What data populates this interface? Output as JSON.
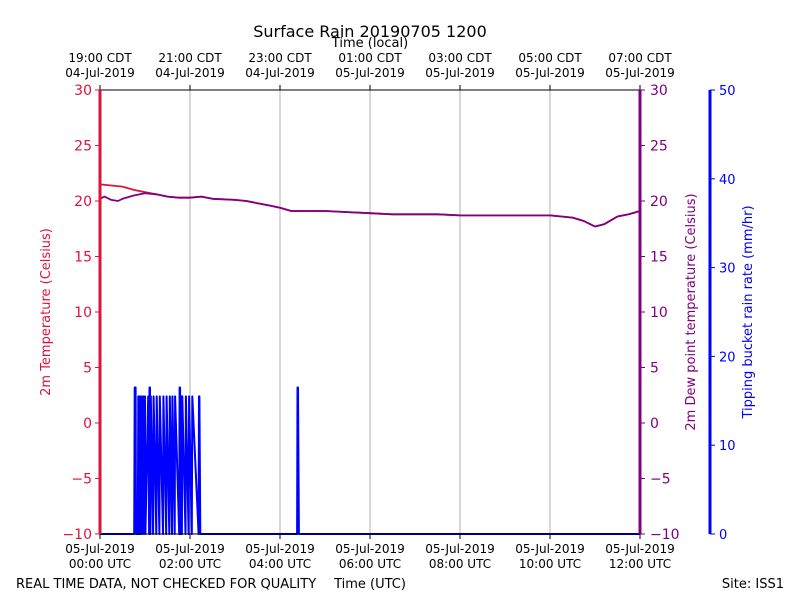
{
  "chart_data": {
    "type": "line",
    "title": "Surface Rain 20190705 1200",
    "top_axis_label": "Time (local)",
    "xlabel": "Time (UTC)",
    "footer_left": "REAL TIME DATA, NOT CHECKED FOR QUALITY",
    "footer_right": "Site: ISS1",
    "x_range_hours_utc": [
      0,
      12
    ],
    "bottom_ticks": [
      {
        "hour": 0,
        "line1": "05-Jul-2019",
        "line2": "00:00 UTC"
      },
      {
        "hour": 2,
        "line1": "05-Jul-2019",
        "line2": "02:00 UTC"
      },
      {
        "hour": 4,
        "line1": "05-Jul-2019",
        "line2": "04:00 UTC"
      },
      {
        "hour": 6,
        "line1": "05-Jul-2019",
        "line2": "06:00 UTC"
      },
      {
        "hour": 8,
        "line1": "05-Jul-2019",
        "line2": "08:00 UTC"
      },
      {
        "hour": 10,
        "line1": "05-Jul-2019",
        "line2": "10:00 UTC"
      },
      {
        "hour": 12,
        "line1": "05-Jul-2019",
        "line2": "12:00 UTC"
      }
    ],
    "top_ticks": [
      {
        "hour": 0,
        "line1": "19:00 CDT",
        "line2": "04-Jul-2019"
      },
      {
        "hour": 2,
        "line1": "21:00 CDT",
        "line2": "04-Jul-2019"
      },
      {
        "hour": 4,
        "line1": "23:00 CDT",
        "line2": "04-Jul-2019"
      },
      {
        "hour": 6,
        "line1": "01:00 CDT",
        "line2": "05-Jul-2019"
      },
      {
        "hour": 8,
        "line1": "03:00 CDT",
        "line2": "05-Jul-2019"
      },
      {
        "hour": 10,
        "line1": "05:00 CDT",
        "line2": "05-Jul-2019"
      },
      {
        "hour": 12,
        "line1": "07:00 CDT",
        "line2": "05-Jul-2019"
      }
    ],
    "grid": true,
    "y_left": {
      "label": "2m Temperature (Celsius)",
      "range": [
        -10,
        30
      ],
      "ticks": [
        -10,
        -5,
        0,
        5,
        10,
        15,
        20,
        25,
        30
      ],
      "color": "#dc143c"
    },
    "y_right_1": {
      "label": "2m Dew point temperature (Celsius)",
      "range": [
        -10,
        30
      ],
      "ticks": [
        -10,
        -5,
        0,
        5,
        10,
        15,
        20,
        25,
        30
      ],
      "color": "#800080"
    },
    "y_right_2": {
      "label": "Tipping bucket rain rate (mm/hr)",
      "range": [
        0,
        50
      ],
      "ticks": [
        0,
        10,
        20,
        30,
        40,
        50
      ],
      "color": "#0000ff"
    },
    "series": [
      {
        "axis": "left",
        "color": "#dc143c",
        "x": [
          0,
          0.25,
          0.5,
          0.75,
          1.0,
          1.25,
          1.5,
          1.75,
          2.0,
          2.25,
          2.5,
          3.0,
          3.25,
          3.5,
          3.75,
          4.0,
          4.25,
          4.5,
          5.0,
          5.5,
          6.0,
          6.5,
          7.0,
          7.5,
          8.0,
          8.5,
          9.0,
          9.5,
          10.0,
          10.5,
          10.75,
          10.9,
          11.0,
          11.2,
          11.5,
          11.75,
          12.0
        ],
        "y": [
          21.5,
          21.4,
          21.3,
          21.0,
          20.8,
          20.6,
          20.4,
          20.3,
          20.3,
          20.4,
          20.2,
          20.1,
          20.0,
          19.8,
          19.6,
          19.4,
          19.1,
          19.1,
          19.1,
          19.0,
          18.9,
          18.8,
          18.8,
          18.8,
          18.7,
          18.7,
          18.7,
          18.7,
          18.7,
          18.5,
          18.2,
          17.9,
          17.7,
          17.9,
          18.6,
          18.8,
          19.1
        ]
      },
      {
        "axis": "right_1",
        "color": "#800080",
        "x": [
          0,
          0.1,
          0.25,
          0.4,
          0.5,
          0.75,
          1.0,
          1.25,
          1.5,
          1.75,
          2.0,
          2.25,
          2.5,
          3.0,
          3.25,
          3.5,
          3.75,
          4.0,
          4.25,
          4.5,
          5.0,
          5.5,
          6.0,
          6.5,
          7.0,
          7.5,
          8.0,
          8.5,
          9.0,
          9.5,
          10.0,
          10.5,
          10.75,
          10.9,
          11.0,
          11.2,
          11.5,
          11.75,
          12.0
        ],
        "y": [
          20.2,
          20.4,
          20.1,
          20.0,
          20.2,
          20.5,
          20.7,
          20.6,
          20.4,
          20.3,
          20.3,
          20.4,
          20.2,
          20.1,
          20.0,
          19.8,
          19.6,
          19.4,
          19.1,
          19.1,
          19.1,
          19.0,
          18.9,
          18.8,
          18.8,
          18.8,
          18.7,
          18.7,
          18.7,
          18.7,
          18.7,
          18.5,
          18.2,
          17.9,
          17.7,
          17.9,
          18.6,
          18.8,
          19.1
        ]
      },
      {
        "axis": "right_2",
        "color": "#0000ff",
        "x": [
          0,
          0.76,
          0.77,
          0.79,
          0.8,
          0.84,
          0.85,
          0.86,
          0.87,
          0.88,
          0.9,
          0.92,
          0.93,
          0.96,
          0.97,
          1.0,
          1.01,
          1.07,
          1.09,
          1.1,
          1.11,
          1.12,
          1.13,
          1.18,
          1.19,
          1.25,
          1.26,
          1.32,
          1.33,
          1.4,
          1.41,
          1.47,
          1.48,
          1.54,
          1.55,
          1.6,
          1.61,
          1.66,
          1.67,
          1.76,
          1.77,
          1.78,
          1.79,
          1.8,
          1.81,
          1.82,
          1.83,
          1.9,
          1.91,
          1.97,
          1.98,
          2.04,
          2.05,
          2.19,
          2.2,
          2.21,
          2.23,
          4.38,
          4.39,
          4.4,
          4.42,
          12.0
        ],
        "y": [
          0,
          0,
          16.5,
          16.5,
          0,
          0,
          15.5,
          15.5,
          0,
          15.5,
          0,
          15.5,
          0,
          15.5,
          0,
          15.5,
          0,
          15.5,
          0,
          16.5,
          16.5,
          0,
          15.5,
          0,
          15.5,
          0,
          15.5,
          0,
          15.5,
          0,
          15.5,
          0,
          15.5,
          0,
          15.5,
          0,
          15.5,
          0,
          15.5,
          0,
          16.5,
          16.5,
          0,
          15.5,
          15.5,
          0,
          15.5,
          0,
          15.5,
          0,
          15.5,
          0,
          15.5,
          0,
          15.5,
          15.5,
          0,
          0,
          16.5,
          16.5,
          0,
          0
        ]
      }
    ]
  }
}
